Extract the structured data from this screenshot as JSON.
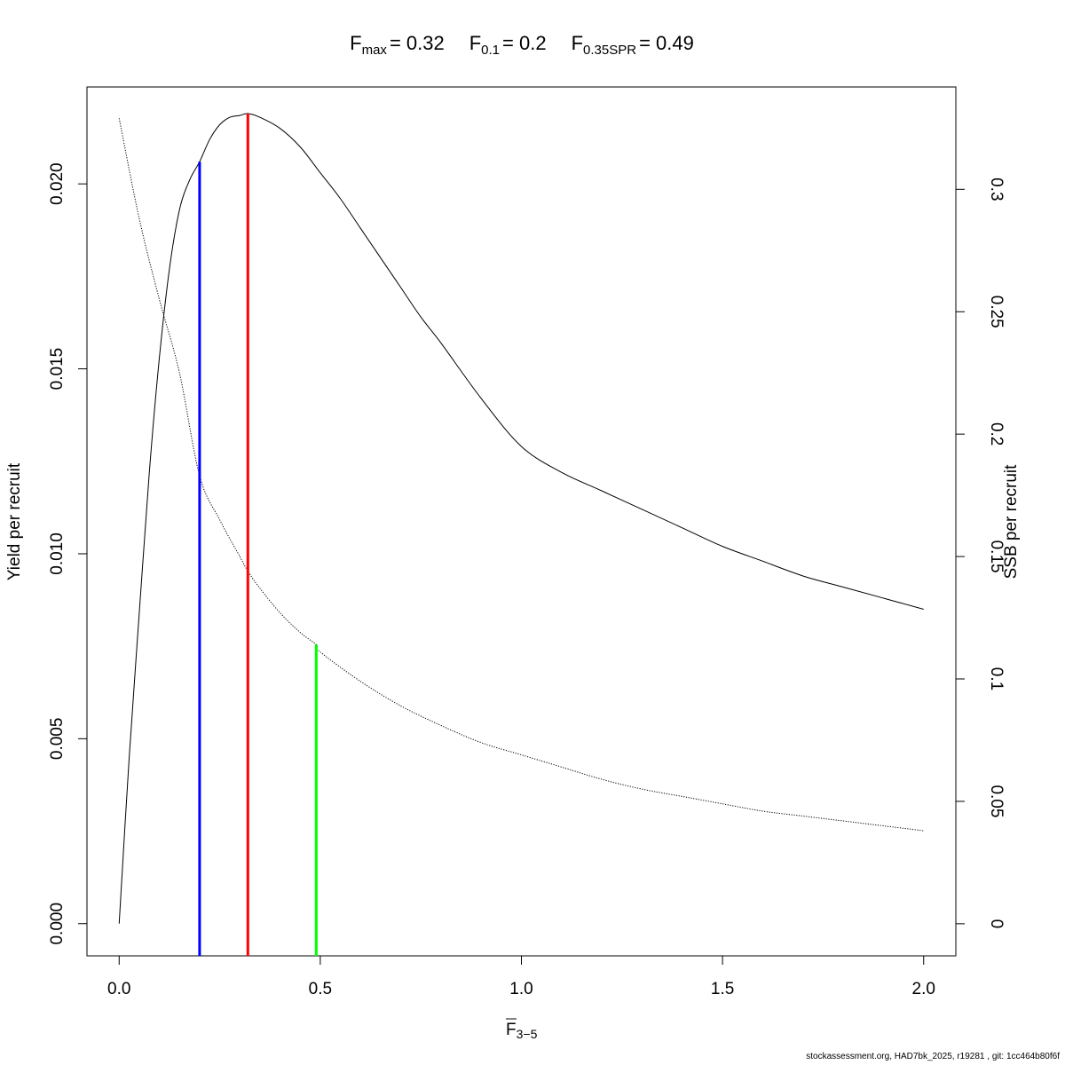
{
  "chart_data": {
    "type": "line",
    "title": {
      "fmax_label": "F",
      "fmax_sub": "max",
      "fmax_value": "= 0.32",
      "f01_label": "F",
      "f01_sub": "0.1",
      "f01_value": "= 0.2",
      "fspr_label": "F",
      "fspr_sub": "0.35SPR",
      "fspr_value": "= 0.49"
    },
    "xlabel": {
      "main": "F",
      "sub": "3−5"
    },
    "ylabel_left": "Yield per recruit",
    "ylabel_right": "SSB per recruit",
    "xlim": [
      -0.08,
      2.08
    ],
    "ylim_left": [
      -0.00087,
      0.02262
    ],
    "ylim_right": [
      -0.0131,
      0.3418
    ],
    "x_ticks": [
      "0.0",
      "0.5",
      "1.0",
      "1.5",
      "2.0"
    ],
    "x_tick_values": [
      0.0,
      0.5,
      1.0,
      1.5,
      2.0
    ],
    "y_left_ticks": [
      "0.000",
      "0.005",
      "0.010",
      "0.015",
      "0.020"
    ],
    "y_left_tick_values": [
      0.0,
      0.005,
      0.01,
      0.015,
      0.02
    ],
    "y_right_ticks": [
      "0",
      "0.05",
      "0.1",
      "0.15",
      "0.2",
      "0.25",
      "0.3"
    ],
    "y_right_tick_values": [
      0.0,
      0.05,
      0.1,
      0.15,
      0.2,
      0.25,
      0.3
    ],
    "series": [
      {
        "axis": "left",
        "style": "solid",
        "color": "#000000",
        "x": [
          0.0,
          0.025,
          0.05,
          0.075,
          0.1,
          0.125,
          0.15,
          0.175,
          0.2,
          0.225,
          0.25,
          0.275,
          0.3,
          0.32,
          0.35,
          0.4,
          0.45,
          0.5,
          0.55,
          0.6,
          0.65,
          0.7,
          0.75,
          0.8,
          0.9,
          1.0,
          1.1,
          1.2,
          1.3,
          1.4,
          1.5,
          1.6,
          1.7,
          1.8,
          1.9,
          2.0
        ],
        "y": [
          0.0,
          0.0045,
          0.0084,
          0.0122,
          0.0153,
          0.0177,
          0.0193,
          0.0201,
          0.0206,
          0.0212,
          0.0216,
          0.0218,
          0.02185,
          0.0219,
          0.0218,
          0.0215,
          0.021,
          0.0203,
          0.0196,
          0.0188,
          0.018,
          0.0172,
          0.0164,
          0.0157,
          0.0142,
          0.0129,
          0.0122,
          0.0117,
          0.0112,
          0.0107,
          0.0102,
          0.0098,
          0.0094,
          0.0091,
          0.0088,
          0.0085
        ]
      },
      {
        "axis": "right",
        "style": "dotted",
        "color": "#000000",
        "x": [
          0.0,
          0.05,
          0.1,
          0.15,
          0.2,
          0.25,
          0.3,
          0.32,
          0.35,
          0.4,
          0.45,
          0.49,
          0.5,
          0.6,
          0.7,
          0.8,
          0.9,
          1.0,
          1.1,
          1.2,
          1.3,
          1.4,
          1.5,
          1.6,
          1.7,
          1.8,
          1.9,
          2.0
        ],
        "y": [
          0.329,
          0.288,
          0.255,
          0.225,
          0.183,
          0.165,
          0.15,
          0.144,
          0.137,
          0.127,
          0.119,
          0.114,
          0.111,
          0.099,
          0.089,
          0.081,
          0.074,
          0.069,
          0.064,
          0.059,
          0.055,
          0.052,
          0.049,
          0.046,
          0.044,
          0.042,
          0.04,
          0.038
        ]
      }
    ],
    "reference_lines": [
      {
        "label": "F0.1",
        "x": 0.2,
        "axis": "left",
        "y_top": 0.0206,
        "color": "#0000ff"
      },
      {
        "label": "Fmax",
        "x": 0.32,
        "axis": "left",
        "y_top": 0.0219,
        "color": "#ff0000"
      },
      {
        "label": "F0.35SPR",
        "x": 0.49,
        "axis": "right",
        "y_top": 0.114,
        "color": "#00ff00"
      }
    ]
  },
  "footer": "stockassessment.org, HAD7bk_2025, r19281 , git: 1cc464b80f6f"
}
